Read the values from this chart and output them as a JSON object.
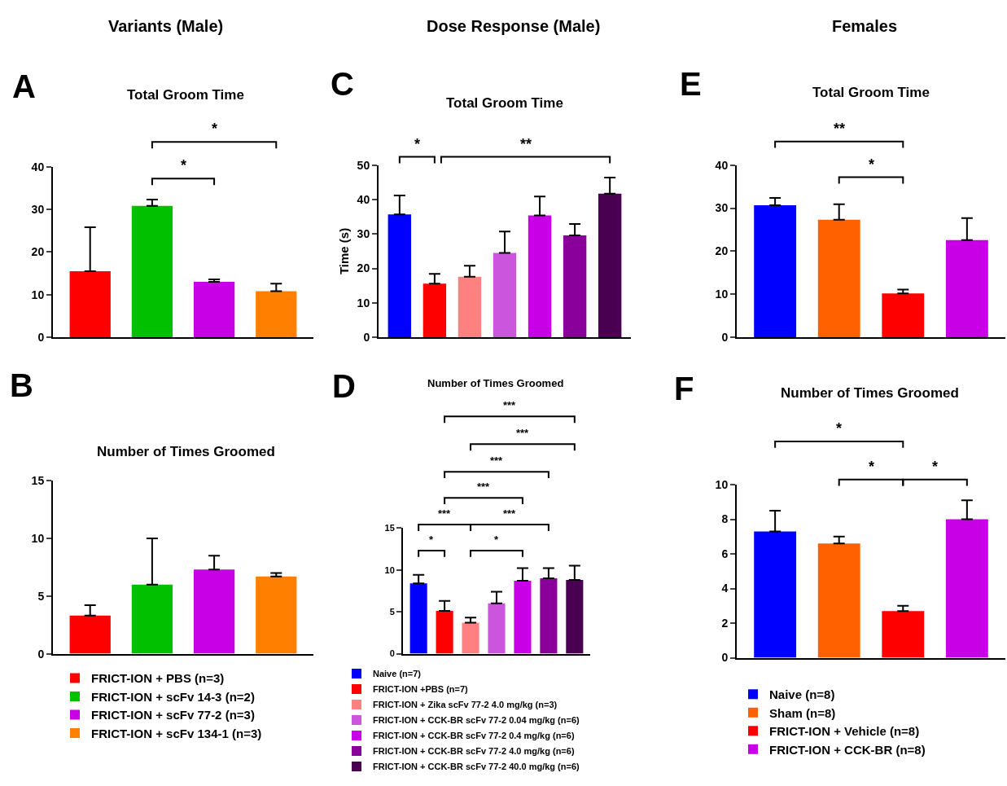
{
  "chart_data": [
    {
      "type": "bar",
      "title": "Total Groom Time",
      "categories": [
        null,
        null,
        null,
        null
      ],
      "values": [
        15.5,
        30.8,
        13.0,
        10.8
      ],
      "colors": [
        "#ff0000",
        "#00c000",
        "#c800e6",
        "#ff8000"
      ],
      "errors": [
        [
          15.5,
          25.8
        ],
        [
          30.8,
          32.3
        ],
        [
          13.0,
          13.6
        ],
        [
          10.8,
          12.6
        ]
      ],
      "ylim": [
        0,
        40
      ],
      "yticks": [
        0,
        10,
        20,
        30,
        40
      ],
      "legend": false,
      "annotations": [
        "A",
        "Variants (Male)",
        "*",
        "*"
      ]
    },
    {
      "type": "bar",
      "title": "Total Groom Time",
      "ylabel": "Time (s)",
      "categories": [
        null,
        null,
        null,
        null,
        null,
        null,
        null
      ],
      "values": [
        35.7,
        15.6,
        17.6,
        24.5,
        35.4,
        29.6,
        41.7
      ],
      "colors": [
        "#0000ff",
        "#ff0000",
        "#ff8080",
        "#cc55dd",
        "#c800e6",
        "#880099",
        "#4a0050"
      ],
      "errors": [
        [
          35.7,
          41.2
        ],
        [
          15.6,
          18.4
        ],
        [
          17.6,
          20.8
        ],
        [
          24.5,
          30.7
        ],
        [
          35.4,
          40.9
        ],
        [
          29.6,
          32.9
        ],
        [
          41.7,
          46.4
        ]
      ],
      "ylim": [
        0,
        50
      ],
      "yticks": [
        0,
        10,
        20,
        30,
        40,
        50
      ],
      "legend": false,
      "annotations": [
        "C",
        "Dose Response (Male)",
        "*",
        "**"
      ]
    },
    {
      "type": "bar",
      "title": "Total Groom Time",
      "categories": [
        null,
        null,
        null,
        null
      ],
      "values": [
        30.7,
        27.3,
        10.2,
        22.6
      ],
      "colors": [
        "#0000ff",
        "#ff6000",
        "#ff0000",
        "#c800e6"
      ],
      "errors": [
        [
          30.7,
          32.4
        ],
        [
          27.3,
          30.9
        ],
        [
          10.2,
          11.1
        ],
        [
          22.6,
          27.7
        ]
      ],
      "ylim": [
        0,
        40
      ],
      "yticks": [
        0,
        10,
        20,
        30,
        40
      ],
      "legend": false,
      "annotations": [
        "E",
        "Females",
        "**",
        "*"
      ]
    },
    {
      "type": "bar",
      "title": "Number of Times Groomed",
      "categories": [
        null,
        null,
        null,
        null
      ],
      "series": [
        {
          "name": "FRICT-ION + PBS (n=3)",
          "color": "#ff0000",
          "values": [
            3.3,
            null,
            null,
            null
          ],
          "errors": [
            [
              3.3,
              4.2
            ],
            null,
            null,
            null
          ]
        },
        {
          "name": "FRICT-ION + scFv 14-3 (n=2)",
          "color": "#00c000",
          "values": [
            null,
            6.0,
            null,
            null
          ],
          "errors": [
            null,
            [
              6.0,
              10.0
            ],
            null,
            null
          ]
        },
        {
          "name": "FRICT-ION + scFv 77-2 (n=3)",
          "color": "#c800e6",
          "values": [
            null,
            null,
            7.3,
            null
          ],
          "errors": [
            null,
            null,
            [
              7.3,
              8.5
            ],
            null
          ]
        },
        {
          "name": "FRICT-ION + scFv 134-1 (n=3)",
          "color": "#ff8000",
          "values": [
            null,
            null,
            null,
            6.7
          ],
          "errors": [
            null,
            null,
            null,
            [
              6.7,
              7.0
            ]
          ]
        }
      ],
      "ylim": [
        0,
        15
      ],
      "yticks": [
        0,
        5,
        10,
        15
      ],
      "legend": "bottom",
      "annotations": [
        "B"
      ]
    },
    {
      "type": "bar",
      "title": "Number of Times Groomed",
      "categories": [
        null,
        null,
        null,
        null,
        null,
        null,
        null
      ],
      "series": [
        {
          "name": "Naive (n=7)",
          "color": "#0000ff",
          "values": [
            8.4,
            null,
            null,
            null,
            null,
            null,
            null
          ],
          "errors": [
            [
              8.4,
              9.4
            ],
            null,
            null,
            null,
            null,
            null,
            null
          ]
        },
        {
          "name": "FRICT-ION +PBS (n=7)",
          "color": "#ff0000",
          "values": [
            null,
            5.1,
            null,
            null,
            null,
            null,
            null
          ],
          "errors": [
            null,
            [
              5.1,
              6.3
            ],
            null,
            null,
            null,
            null,
            null
          ]
        },
        {
          "name": "FRICT-ION + Zika scFv 77-2 4.0 mg/kg (n=3)",
          "color": "#ff8080",
          "values": [
            null,
            null,
            3.7,
            null,
            null,
            null,
            null
          ],
          "errors": [
            null,
            null,
            [
              3.7,
              4.3
            ],
            null,
            null,
            null,
            null
          ]
        },
        {
          "name": "FRICT-ION + CCK-BR scFv 77-2 0.04 mg/kg (n=6)",
          "color": "#cc55dd",
          "values": [
            null,
            null,
            null,
            6.0,
            null,
            null,
            null
          ],
          "errors": [
            null,
            null,
            null,
            [
              6.0,
              7.4
            ],
            null,
            null,
            null
          ]
        },
        {
          "name": "FRICT-ION + CCK-BR scFv 77-2 0.4 mg/kg (n=6)",
          "color": "#c800e6",
          "values": [
            null,
            null,
            null,
            null,
            8.7,
            null,
            null
          ],
          "errors": [
            null,
            null,
            null,
            null,
            [
              8.7,
              10.2
            ],
            null,
            null
          ]
        },
        {
          "name": "FRICT-ION + CCK-BR scFv 77-2 4.0 mg/kg (n=6)",
          "color": "#880099",
          "values": [
            null,
            null,
            null,
            null,
            null,
            9.0,
            null
          ],
          "errors": [
            null,
            null,
            null,
            null,
            null,
            [
              9.0,
              10.2
            ],
            null
          ]
        },
        {
          "name": "FRICT-ION + CCK-BR scFv 77-2 40.0 mg/kg (n=6)",
          "color": "#4a0050",
          "values": [
            null,
            null,
            null,
            null,
            null,
            null,
            8.8
          ],
          "errors": [
            null,
            null,
            null,
            null,
            null,
            null,
            [
              8.8,
              10.5
            ]
          ]
        }
      ],
      "ylim": [
        0,
        15
      ],
      "yticks": [
        0,
        5,
        10,
        15
      ],
      "legend": "bottom",
      "annotations": [
        "D",
        "*",
        "*",
        "***",
        "***",
        "***",
        "***",
        "***",
        "***"
      ]
    },
    {
      "type": "bar",
      "title": "Number of Times Groomed",
      "categories": [
        null,
        null,
        null,
        null
      ],
      "series": [
        {
          "name": "Naive (n=8)",
          "color": "#0000ff",
          "values": [
            7.3,
            null,
            null,
            null
          ],
          "errors": [
            [
              7.3,
              8.5
            ],
            null,
            null,
            null
          ]
        },
        {
          "name": "Sham (n=8)",
          "color": "#ff6000",
          "values": [
            null,
            6.6,
            null,
            null
          ],
          "errors": [
            null,
            [
              6.6,
              7.0
            ],
            null,
            null
          ]
        },
        {
          "name": "FRICT-ION + Vehicle (n=8)",
          "color": "#ff0000",
          "values": [
            null,
            null,
            2.7,
            null
          ],
          "errors": [
            null,
            null,
            [
              2.7,
              3.0
            ],
            null
          ]
        },
        {
          "name": "FRICT-ION + CCK-BR (n=8)",
          "color": "#c800e6",
          "values": [
            null,
            null,
            null,
            8.0
          ],
          "errors": [
            null,
            null,
            null,
            [
              8.0,
              9.1
            ]
          ]
        }
      ],
      "ylim": [
        0,
        10
      ],
      "yticks": [
        0,
        2,
        4,
        6,
        8,
        10
      ],
      "legend": "bottom",
      "annotations": [
        "F",
        "*",
        "*",
        "*"
      ]
    }
  ]
}
